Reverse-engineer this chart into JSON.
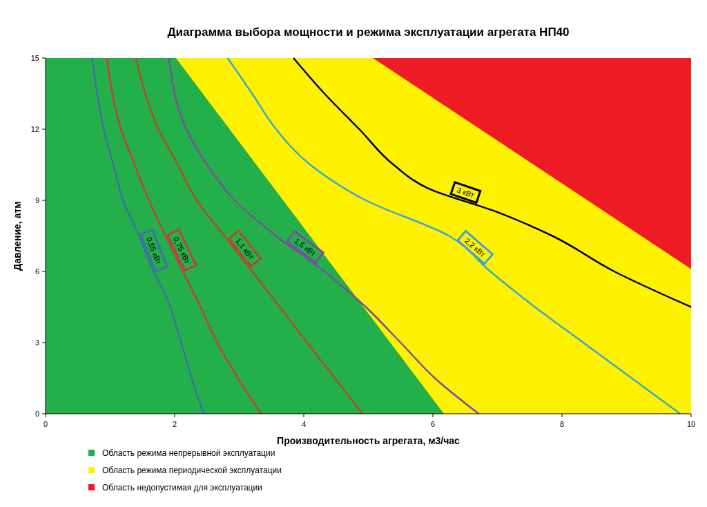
{
  "chart_data": {
    "type": "area",
    "title": "Диаграмма выбора мощности и режима эксплуатации агрегата НП40",
    "xlabel": "Производительность агрегата, м3/час",
    "ylabel": "Давление, атм",
    "xlim": [
      0,
      10
    ],
    "ylim": [
      0,
      15
    ],
    "xticks": [
      0,
      2,
      4,
      6,
      8,
      10
    ],
    "yticks": [
      0,
      3,
      6,
      9,
      12,
      15
    ],
    "grid": false,
    "legend": "bottom left",
    "series": [
      {
        "name": "Область режима непрерывной эксплуатации",
        "color": "#23b04b",
        "x": [
          0,
          2.02,
          6.17
        ],
        "values": [
          15,
          15,
          0
        ]
      },
      {
        "name": "Область режима периодической эксплуатации",
        "color": "#fff200",
        "x": [
          2.02,
          5.07,
          10
        ],
        "values": [
          15,
          15,
          6.1
        ]
      },
      {
        "name": "Область недопустимая для эксплуатации",
        "color": "#ed1c24",
        "x": [
          5.07,
          10
        ],
        "values": [
          15,
          15
        ]
      },
      {
        "type": "line",
        "name": "0,55 кВт",
        "color": "#3f6fa8",
        "x": [
          0.72,
          0.8,
          0.9,
          1.05,
          1.2,
          1.45,
          1.67,
          1.86,
          2.1,
          2.32,
          2.45
        ],
        "values": [
          15,
          13.5,
          12,
          10.5,
          9,
          7.5,
          6,
          5,
          3,
          1,
          0
        ]
      },
      {
        "type": "line",
        "name": "0,75 кВт",
        "color": "#c0403a",
        "x": [
          0.95,
          1.17,
          1.38,
          1.6,
          1.86,
          2.13,
          2.4,
          2.66,
          2.98,
          3.34
        ],
        "values": [
          15,
          12,
          10.5,
          9,
          7.5,
          6,
          4.5,
          3,
          1.5,
          0
        ]
      },
      {
        "type": "line",
        "name": "1,1 кВт",
        "color": "#b5482a",
        "x": [
          1.4,
          1.75,
          2.05,
          2.34,
          2.77,
          3.2,
          3.63,
          4.05,
          4.48,
          4.91
        ],
        "values": [
          15,
          12,
          10.5,
          9,
          7.5,
          6,
          4.5,
          3,
          1.5,
          0
        ]
      },
      {
        "type": "line",
        "name": "1,5 кВт",
        "color": "#7b4f9d",
        "x": [
          1.91,
          2.18,
          2.5,
          2.93,
          3.57,
          4.32,
          4.96,
          5.5,
          6.03,
          6.71
        ],
        "values": [
          15,
          12,
          10.5,
          9,
          7.5,
          6,
          4.5,
          3,
          1.5,
          0
        ]
      },
      {
        "type": "line",
        "name": "2,2 кВт",
        "color": "#3aa6d0",
        "x": [
          2.82,
          3.2,
          3.57,
          4.1,
          4.96,
          6.25,
          6.89,
          7.58,
          8.33,
          9.08,
          9.83
        ],
        "values": [
          15,
          13.5,
          12,
          10.5,
          9,
          7.5,
          6,
          4.5,
          3,
          1.5,
          0
        ]
      },
      {
        "type": "line",
        "name": "3 кВт",
        "color": "#000000",
        "x": [
          3.84,
          4.32,
          4.86,
          5.39,
          5.93,
          7.0,
          7.85,
          8.81,
          10
        ],
        "values": [
          15,
          13.5,
          12,
          10.5,
          9.5,
          8.5,
          7.5,
          6,
          4.5
        ]
      }
    ]
  }
}
